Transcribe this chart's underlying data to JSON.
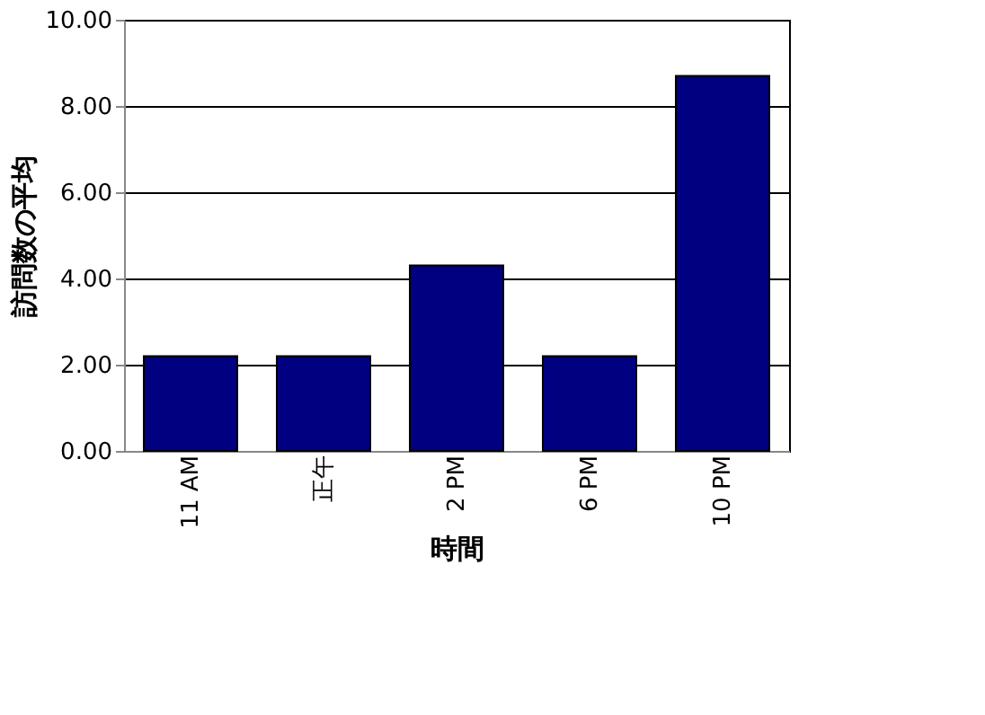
{
  "chart_data": {
    "type": "bar",
    "xlabel": "時間",
    "ylabel": "訪問数の平均",
    "categories": [
      "11 AM",
      "正午",
      "2 PM",
      "6 PM",
      "10 PM"
    ],
    "values": [
      2.2,
      2.2,
      4.3,
      2.2,
      8.7
    ],
    "color": "#000080",
    "ylim": [
      0,
      10
    ],
    "yticks": [
      {
        "value": 0,
        "label": "0.00"
      },
      {
        "value": 2,
        "label": "2.00"
      },
      {
        "value": 4,
        "label": "4.00"
      },
      {
        "value": 6,
        "label": "6.00"
      },
      {
        "value": 8,
        "label": "8.00"
      },
      {
        "value": 10,
        "label": "10.00"
      }
    ],
    "grid": "y"
  }
}
